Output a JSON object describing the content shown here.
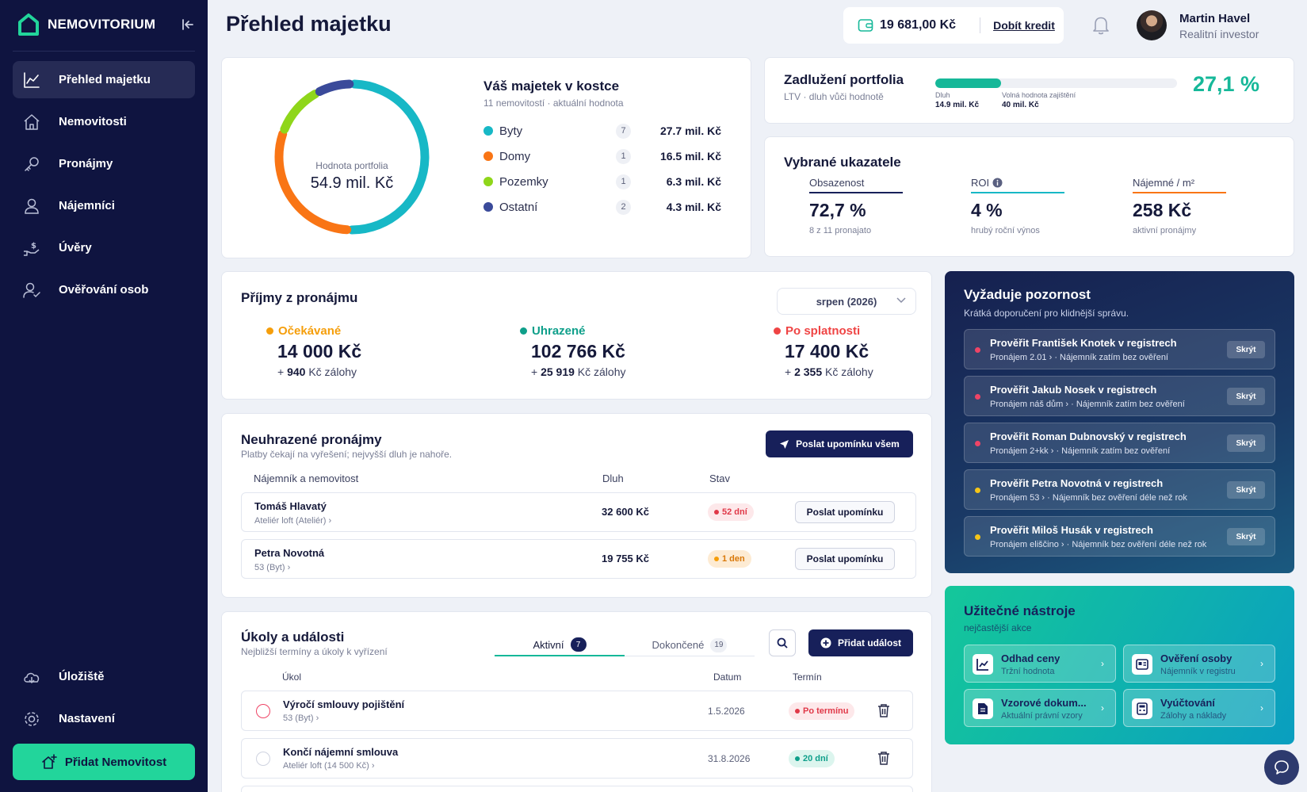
{
  "sidebar": {
    "logo_text": "NEMOVITORIUM",
    "nav": [
      {
        "label": "Přehled majetku",
        "icon": "chart-line-icon",
        "active": true
      },
      {
        "label": "Nemovitosti",
        "icon": "home-icon"
      },
      {
        "label": "Pronájmy",
        "icon": "key-icon"
      },
      {
        "label": "Nájemníci",
        "icon": "user-icon"
      },
      {
        "label": "Úvěry",
        "icon": "hand-money-icon"
      },
      {
        "label": "Ověřování osob",
        "icon": "user-check-icon"
      }
    ],
    "bottom": [
      {
        "label": "Úložiště",
        "icon": "cloud-icon"
      },
      {
        "label": "Nastavení",
        "icon": "gear-icon"
      }
    ],
    "add_button": "Přidat Nemovitost"
  },
  "header": {
    "title": "Přehled majetku",
    "credit": "19 681,00 Kč",
    "topup": "Dobít kredit",
    "user_name": "Martin Havel",
    "user_role": "Realitní investor"
  },
  "portfolio": {
    "center_label": "Hodnota portfolia",
    "center_value": "54.9 mil. Kč",
    "title": "Váš majetek v kostce",
    "subtitle": "11 nemovitostí · aktuální hodnota",
    "items": [
      {
        "name": "Byty",
        "count": "7",
        "value": "27.7 mil. Kč",
        "amount": 27.7,
        "color": "#17b8c6"
      },
      {
        "name": "Domy",
        "count": "1",
        "value": "16.5 mil. Kč",
        "amount": 16.5,
        "color": "#f97515"
      },
      {
        "name": "Pozemky",
        "count": "1",
        "value": "6.3 mil. Kč",
        "amount": 6.3,
        "color": "#8fd61a"
      },
      {
        "name": "Ostatní",
        "count": "2",
        "value": "4.3 mil. Kč",
        "amount": 4.3,
        "color": "#3a4a9a"
      }
    ]
  },
  "debt": {
    "title": "Zadlužení portfolia",
    "subtitle": "LTV · dluh vůči hodnotě",
    "debt_label": "Dluh",
    "debt_value": "14.9 mil. Kč",
    "free_label": "Volná hodnota zajištění",
    "free_value": "40 mil. Kč",
    "percent": "27,1 %",
    "fill_fraction": 0.271
  },
  "indicators": {
    "title": "Vybrané ukazatele",
    "items": [
      {
        "label": "Obsazenost",
        "value": "72,7 %",
        "sub": "8 z 11 pronajato",
        "color": "#17205a"
      },
      {
        "label": "ROI",
        "value": "4 %",
        "sub": "hrubý roční výnos",
        "color": "#17b8c6"
      },
      {
        "label": "Nájemné / m²",
        "value": "258 Kč",
        "sub": "aktivní pronájmy",
        "color": "#f97515"
      }
    ]
  },
  "income": {
    "title": "Příjmy z pronájmu",
    "month": "srpen (2026)",
    "items": [
      {
        "label": "Očekávané",
        "value": "14 000 Kč",
        "dep_prefix": "+ ",
        "dep_amount": "940",
        "dep_suffix": " Kč zálohy",
        "color": "#f59e0b"
      },
      {
        "label": "Uhrazené",
        "value": "102 766 Kč",
        "dep_prefix": "+ ",
        "dep_amount": "25 919",
        "dep_suffix": " Kč zálohy",
        "color": "#0e9f8a"
      },
      {
        "label": "Po splatnosti",
        "value": "17 400 Kč",
        "dep_prefix": "+ ",
        "dep_amount": "2 355",
        "dep_suffix": " Kč zálohy",
        "color": "#ef4444"
      }
    ]
  },
  "unpaid": {
    "title": "Neuhrazené pronájmy",
    "subtitle": "Platby čekají na vyřešení; nejvyšší dluh je nahoře.",
    "remind_all": "Poslat upomínku všem",
    "columns": [
      "Nájemník a nemovitost",
      "Dluh",
      "Stav"
    ],
    "rows": [
      {
        "tenant": "Tomáš Hlavatý",
        "property": "Ateliér loft (Ateliér) ›",
        "debt": "32 600 Kč",
        "status": "52 dní",
        "tone": "red",
        "action": "Poslat upomínku"
      },
      {
        "tenant": "Petra Novotná",
        "property": "53 (Byt) ›",
        "debt": "19 755 Kč",
        "status": "1 den",
        "tone": "orange",
        "action": "Poslat upomínku"
      }
    ]
  },
  "tasks": {
    "title": "Úkoly a události",
    "subtitle": "Nejbližší termíny a úkoly k vyřízení",
    "tabs": [
      {
        "label": "Aktivní",
        "count": "7"
      },
      {
        "label": "Dokončené",
        "count": "19"
      }
    ],
    "add_button": "Přidat událost",
    "columns": [
      "Úkol",
      "Datum",
      "Termín"
    ],
    "rows": [
      {
        "title": "Výročí smlouvy pojištění",
        "sub": "53 (Byt) ›",
        "date": "1.5.2026",
        "status": "Po termínu",
        "tone": "red"
      },
      {
        "title": "Končí nájemní smlouva",
        "sub": "Ateliér loft (14 500 Kč) ›",
        "date": "31.8.2026",
        "status": "20 dní",
        "tone": "green"
      }
    ]
  },
  "attention": {
    "title": "Vyžaduje pozornost",
    "subtitle": "Krátká doporučení pro klidnější správu.",
    "hide_label": "Skrýt",
    "items": [
      {
        "title": "Prověřit František Knotek v registrech",
        "rental": "Pronájem 2.01 ›",
        "note": " · Nájemník zatím bez ověření",
        "color": "#ef4466"
      },
      {
        "title": "Prověřit Jakub Nosek v registrech",
        "rental": "Pronájem náš dům ›",
        "note": " · Nájemník zatím bez ověření",
        "color": "#ef4466"
      },
      {
        "title": "Prověřit Roman Dubnovský v registrech",
        "rental": "Pronájem 2+kk ›",
        "note": " · Nájemník zatím bez ověření",
        "color": "#ef4466"
      },
      {
        "title": "Prověřit Petra Novotná v registrech",
        "rental": "Pronájem 53 ›",
        "note": " · Nájemník bez ověření déle než rok",
        "color": "#f5c518"
      },
      {
        "title": "Prověřit Miloš Husák v registrech",
        "rental": "Pronájem eliščino ›",
        "note": " · Nájemník bez ověření déle než rok",
        "color": "#f5c518"
      }
    ]
  },
  "tools": {
    "title": "Užitečné nástroje",
    "subtitle": "nejčastější akce",
    "items": [
      {
        "name": "Odhad ceny",
        "sub": "Tržní hodnota",
        "icon": "chart-icon"
      },
      {
        "name": "Ověření osoby",
        "sub": "Nájemník v registru",
        "icon": "id-card-icon"
      },
      {
        "name": "Vzorové dokum...",
        "sub": "Aktuální právní vzory",
        "icon": "document-icon"
      },
      {
        "name": "Vyúčtování",
        "sub": "Zálohy a náklady",
        "icon": "calculator-icon"
      }
    ]
  }
}
